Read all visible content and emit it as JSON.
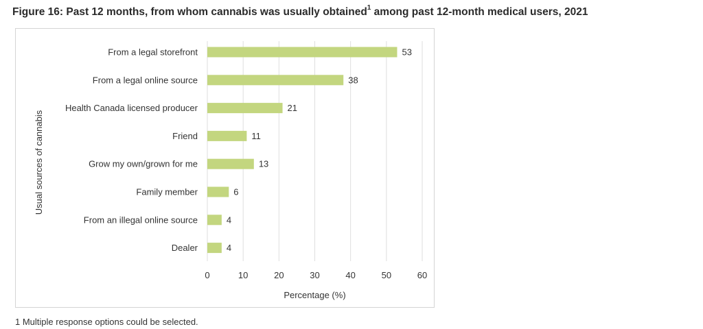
{
  "figure": {
    "title_main": "Figure 16: Past 12 months, from whom cannabis was usually obtained",
    "title_sup": "1",
    "title_tail": " among past 12-month medical users, 2021"
  },
  "footnote": "1 Multiple response options could be selected.",
  "chart_data": {
    "type": "bar",
    "orientation": "horizontal",
    "categories": [
      "From a legal storefront",
      "From a legal online source",
      "Health Canada licensed producer",
      "Friend",
      "Grow my own/grown for me",
      "Family member",
      "From an illegal online source",
      "Dealer"
    ],
    "values": [
      53,
      38,
      21,
      11,
      13,
      6,
      4,
      4
    ],
    "xlabel": "Percentage (%)",
    "ylabel": "Usual sources of cannabis",
    "xlim": [
      0,
      60
    ],
    "xticks": [
      0,
      10,
      20,
      30,
      40,
      50,
      60
    ],
    "grid": true,
    "data_labels": true,
    "bar_color": "#c3d67f",
    "grid_color": "#dedede"
  }
}
